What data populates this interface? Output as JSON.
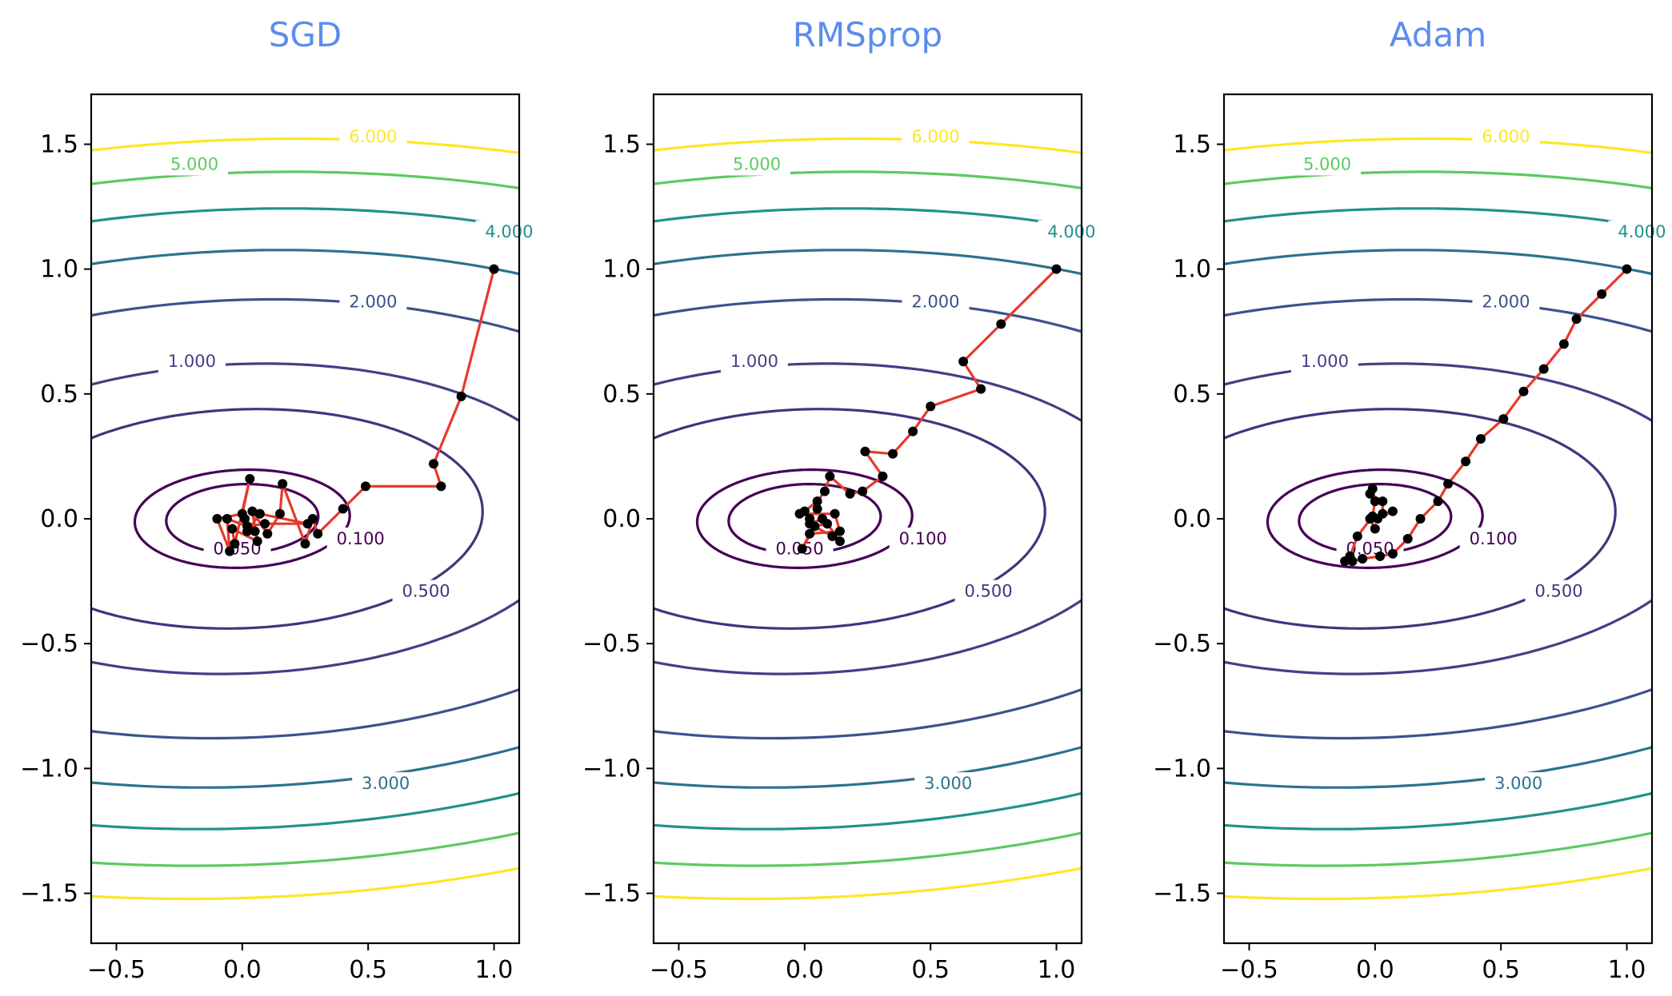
{
  "chart_data": [
    {
      "type": "line",
      "title": "SGD",
      "xlabel": "",
      "ylabel": "",
      "xlim": [
        -0.6,
        1.1
      ],
      "ylim": [
        -1.7,
        1.7
      ],
      "xticks": [
        -0.5,
        0.0,
        0.5,
        1.0
      ],
      "yticks": [
        -1.5,
        -1.0,
        -0.5,
        0.0,
        0.5,
        1.0,
        1.5
      ],
      "xtick_labels": [
        "−0.5",
        "0.0",
        "0.5",
        "1.0"
      ],
      "ytick_labels": [
        "−1.5",
        "−1.0",
        "−0.5",
        "0.0",
        "0.5",
        "1.0",
        "1.5"
      ],
      "contour_levels": [
        "0.050",
        "0.100",
        "0.500",
        "1.000",
        "2.000",
        "3.000",
        "4.000",
        "5.000",
        "6.000"
      ],
      "path_color": "#e8392a",
      "point_color": "#000000",
      "path": [
        [
          1.0,
          1.0
        ],
        [
          0.87,
          0.49
        ],
        [
          0.76,
          0.22
        ],
        [
          0.79,
          0.13
        ],
        [
          0.49,
          0.13
        ],
        [
          0.4,
          0.04
        ],
        [
          0.3,
          -0.06
        ],
        [
          0.28,
          0.0
        ],
        [
          0.25,
          -0.1
        ],
        [
          0.16,
          0.14
        ],
        [
          0.15,
          0.02
        ],
        [
          0.1,
          -0.06
        ],
        [
          0.04,
          0.03
        ],
        [
          0.06,
          -0.09
        ],
        [
          -0.04,
          -0.04
        ],
        [
          -0.03,
          -0.1
        ],
        [
          0.03,
          0.16
        ],
        [
          0.0,
          0.02
        ],
        [
          -0.1,
          0.0
        ],
        [
          -0.05,
          -0.13
        ],
        [
          -0.06,
          0.0
        ],
        [
          0.02,
          -0.03
        ],
        [
          0.09,
          -0.02
        ],
        [
          0.26,
          -0.02
        ],
        [
          0.07,
          0.02
        ],
        [
          0.02,
          -0.05
        ],
        [
          0.05,
          -0.05
        ],
        [
          0.01,
          0.0
        ]
      ]
    },
    {
      "type": "line",
      "title": "RMSprop",
      "xlabel": "",
      "ylabel": "",
      "xlim": [
        -0.6,
        1.1
      ],
      "ylim": [
        -1.7,
        1.7
      ],
      "xticks": [
        -0.5,
        0.0,
        0.5,
        1.0
      ],
      "yticks": [
        -1.5,
        -1.0,
        -0.5,
        0.0,
        0.5,
        1.0,
        1.5
      ],
      "xtick_labels": [
        "−0.5",
        "0.0",
        "0.5",
        "1.0"
      ],
      "ytick_labels": [
        "−1.5",
        "−1.0",
        "−0.5",
        "0.0",
        "0.5",
        "1.0",
        "1.5"
      ],
      "contour_levels": [
        "0.050",
        "0.100",
        "0.500",
        "1.000",
        "2.000",
        "3.000",
        "4.000",
        "5.000",
        "6.000"
      ],
      "path_color": "#e8392a",
      "point_color": "#000000",
      "path": [
        [
          1.0,
          1.0
        ],
        [
          0.78,
          0.78
        ],
        [
          0.63,
          0.63
        ],
        [
          0.7,
          0.52
        ],
        [
          0.5,
          0.45
        ],
        [
          0.43,
          0.35
        ],
        [
          0.35,
          0.26
        ],
        [
          0.24,
          0.27
        ],
        [
          0.31,
          0.17
        ],
        [
          0.23,
          0.11
        ],
        [
          0.18,
          0.1
        ],
        [
          0.1,
          0.17
        ],
        [
          0.08,
          0.11
        ],
        [
          0.05,
          0.07
        ],
        [
          0.0,
          0.03
        ],
        [
          -0.02,
          0.02
        ],
        [
          0.12,
          0.02
        ],
        [
          0.14,
          -0.05
        ],
        [
          0.02,
          -0.06
        ],
        [
          -0.01,
          -0.12
        ],
        [
          0.04,
          -0.03
        ],
        [
          0.09,
          -0.02
        ],
        [
          0.14,
          -0.09
        ],
        [
          0.11,
          -0.07
        ],
        [
          0.02,
          -0.02
        ],
        [
          0.07,
          0.0
        ],
        [
          0.05,
          0.04
        ],
        [
          0.02,
          0.0
        ]
      ]
    },
    {
      "type": "line",
      "title": "Adam",
      "xlabel": "",
      "ylabel": "",
      "xlim": [
        -0.6,
        1.1
      ],
      "ylim": [
        -1.7,
        1.7
      ],
      "xticks": [
        -0.5,
        0.0,
        0.5,
        1.0
      ],
      "yticks": [
        -1.5,
        -1.0,
        -0.5,
        0.0,
        0.5,
        1.0,
        1.5
      ],
      "xtick_labels": [
        "−0.5",
        "0.0",
        "0.5",
        "1.0"
      ],
      "ytick_labels": [
        "−1.5",
        "−1.0",
        "−0.5",
        "0.0",
        "0.5",
        "1.0",
        "1.5"
      ],
      "contour_levels": [
        "0.050",
        "0.100",
        "0.500",
        "1.000",
        "2.000",
        "3.000",
        "4.000",
        "5.000",
        "6.000"
      ],
      "path_color": "#e8392a",
      "point_color": "#000000",
      "path": [
        [
          1.0,
          1.0
        ],
        [
          0.9,
          0.9
        ],
        [
          0.8,
          0.8
        ],
        [
          0.75,
          0.7
        ],
        [
          0.67,
          0.6
        ],
        [
          0.59,
          0.51
        ],
        [
          0.51,
          0.4
        ],
        [
          0.42,
          0.32
        ],
        [
          0.36,
          0.23
        ],
        [
          0.29,
          0.14
        ],
        [
          0.25,
          0.07
        ],
        [
          0.18,
          0.0
        ],
        [
          0.13,
          -0.08
        ],
        [
          0.07,
          -0.14
        ],
        [
          0.02,
          -0.15
        ],
        [
          -0.05,
          -0.16
        ],
        [
          -0.09,
          -0.17
        ],
        [
          -0.12,
          -0.17
        ],
        [
          -0.1,
          -0.15
        ],
        [
          -0.07,
          -0.07
        ],
        [
          -0.01,
          0.01
        ],
        [
          0.0,
          0.07
        ],
        [
          -0.01,
          0.12
        ],
        [
          -0.02,
          0.1
        ],
        [
          0.03,
          0.07
        ],
        [
          0.03,
          0.02
        ],
        [
          0.07,
          0.03
        ],
        [
          0.01,
          0.0
        ],
        [
          -0.02,
          0.0
        ],
        [
          0.0,
          -0.04
        ]
      ]
    }
  ]
}
